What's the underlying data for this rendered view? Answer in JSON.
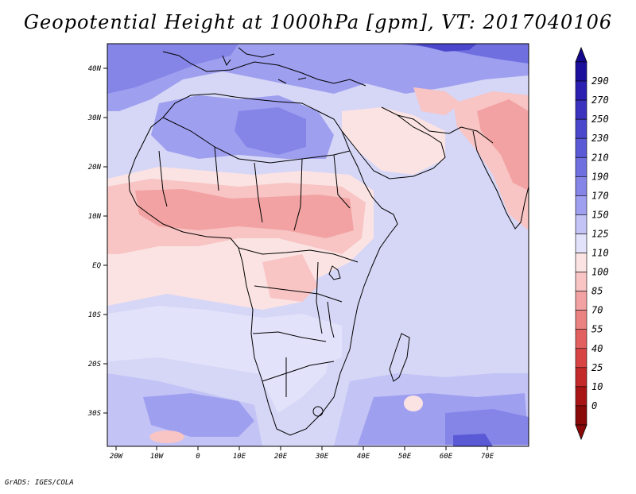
{
  "title": "Geopotential Height at 1000hPa [gpm], VT: 2017040106",
  "credit": "GrADS: IGES/COLA",
  "map": {
    "lat_labels": [
      "40N",
      "30N",
      "20N",
      "10N",
      "EQ",
      "10S",
      "20S",
      "30S"
    ],
    "lon_labels": [
      "20W",
      "10W",
      "0",
      "10E",
      "20E",
      "30E",
      "40E",
      "50E",
      "60E",
      "70E"
    ]
  },
  "colorbar": {
    "labels": [
      "290",
      "270",
      "250",
      "230",
      "210",
      "190",
      "170",
      "150",
      "125",
      "110",
      "100",
      "85",
      "70",
      "55",
      "40",
      "25",
      "10",
      "0"
    ],
    "colors": [
      "#1c0f9c",
      "#2a1fb0",
      "#3b33c0",
      "#4b47cc",
      "#5b5ad6",
      "#6f6fe0",
      "#8585e8",
      "#9f9ff0",
      "#c3c3f6",
      "#e2e2fb",
      "#fbe3e3",
      "#f8c4c4",
      "#f2a2a2",
      "#eb8282",
      "#e26060",
      "#d84444",
      "#c52a2a",
      "#a91515",
      "#8a0a0a"
    ],
    "top_color": "#14088c",
    "bottom_color": "#8a0a0a"
  }
}
